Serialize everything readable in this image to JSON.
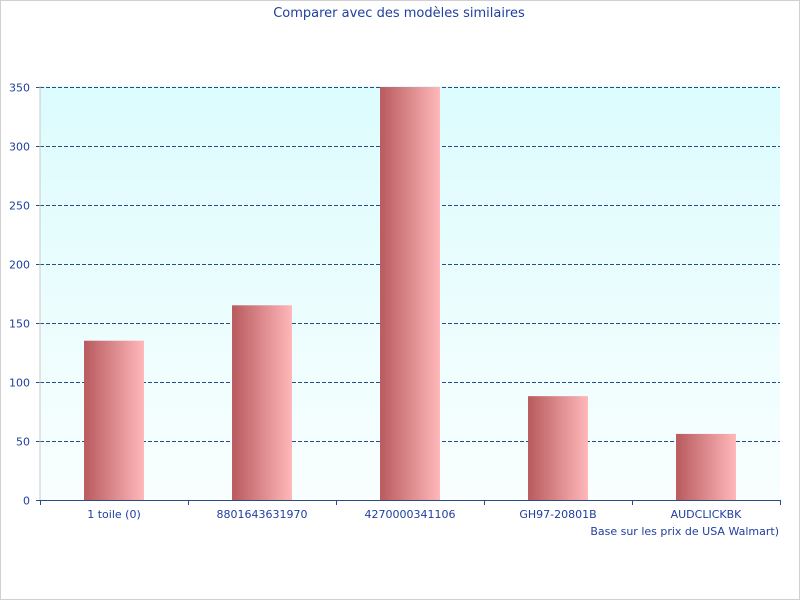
{
  "chart_data": {
    "type": "bar",
    "title": "Comparer avec des modèles similaires",
    "xlabel": "Base sur les prix de USA Walmart)",
    "ylabel": "",
    "categories": [
      "1 toile (0)",
      "8801643631970",
      "4270000341106",
      "GH97-20801B",
      "AUDCLICKBK"
    ],
    "values": [
      135,
      165,
      350,
      88,
      56
    ],
    "ylim": [
      0,
      350
    ],
    "yticks": [
      0,
      50,
      100,
      150,
      200,
      250,
      300,
      350
    ],
    "grid": true,
    "legend": "none"
  },
  "colors": {
    "bar_dark": "#b85a5e",
    "bar_light": "#ffb8ba",
    "plot_bg_top": "#dcfcfd",
    "plot_bg_bottom": "#f9fefe",
    "grid": "#2a4a8a",
    "text": "#1f3f9f"
  }
}
